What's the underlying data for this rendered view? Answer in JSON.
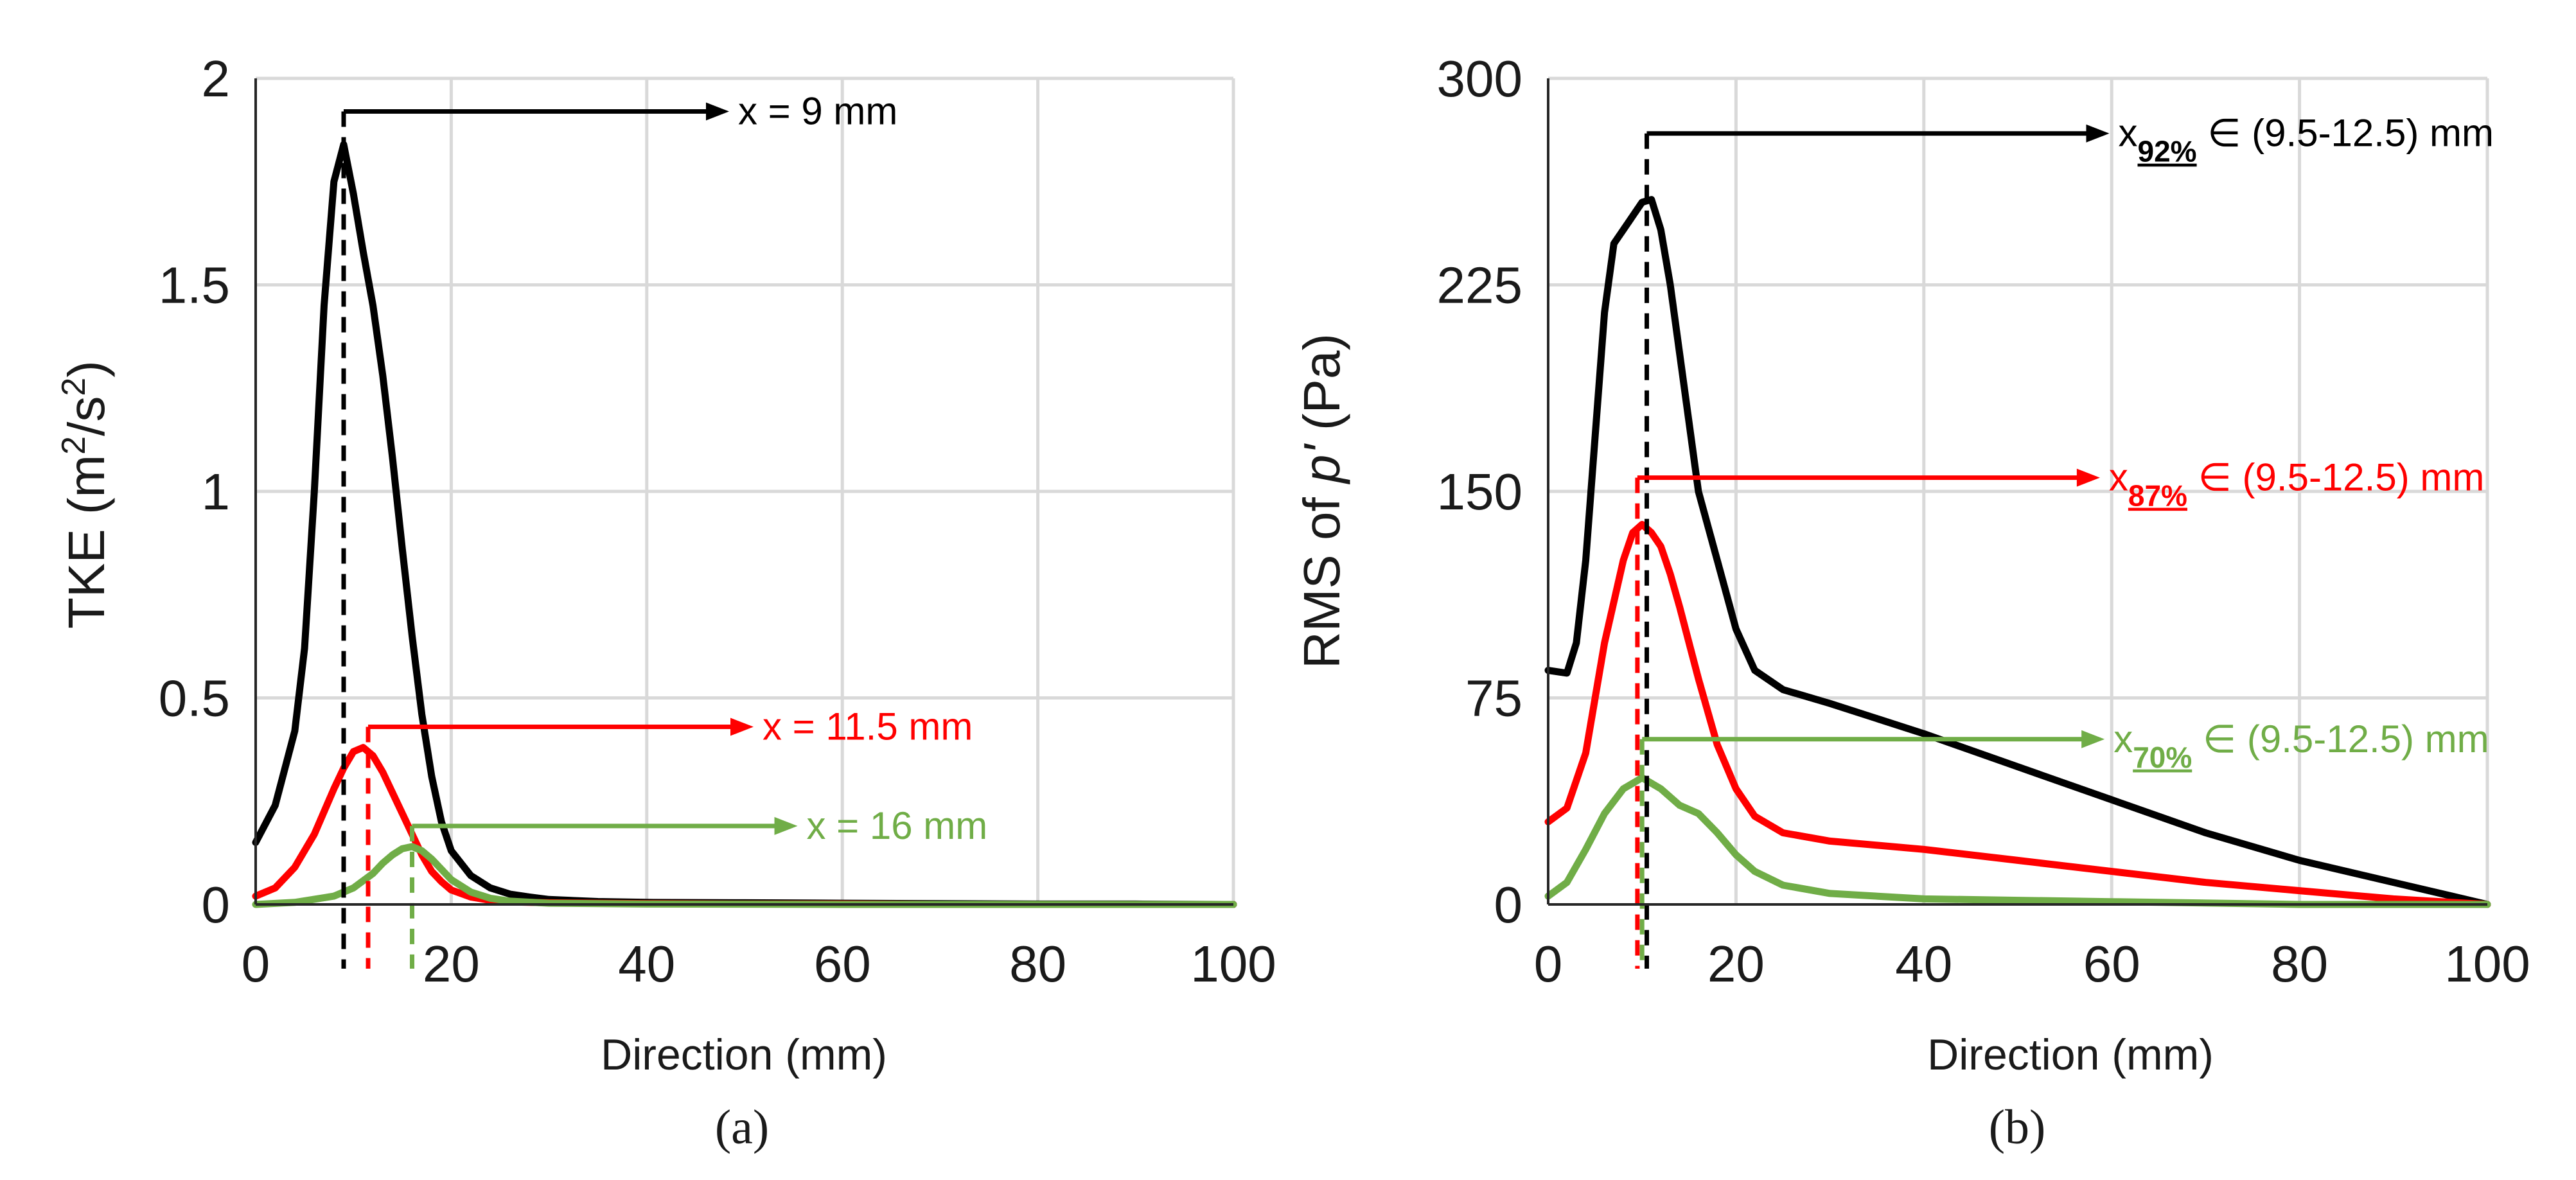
{
  "chart_data": [
    {
      "type": "line",
      "panel_label": "(a)",
      "xlabel": "Direction (mm)",
      "ylabel": "TKE (m²/s²)",
      "ylabel_parts": {
        "pre": "TKE (m",
        "sup1": "2",
        "mid": "/s",
        "sup2": "2",
        "post": ")"
      },
      "xlim": [
        0,
        100
      ],
      "ylim": [
        0,
        2
      ],
      "xticks": [
        "0",
        "20",
        "40",
        "60",
        "80",
        "100"
      ],
      "yticks": [
        "0",
        "0.5",
        "1",
        "1.5",
        "2"
      ],
      "grid": true,
      "series": [
        {
          "name": "black",
          "color": "#000000",
          "x": [
            0,
            2,
            4,
            5,
            6,
            7,
            8,
            9,
            10,
            11,
            12,
            13,
            14,
            15,
            16,
            17,
            18,
            19,
            20,
            22,
            24,
            26,
            28,
            30,
            35,
            40,
            50,
            60,
            70,
            80,
            90,
            100
          ],
          "y": [
            0.15,
            0.24,
            0.42,
            0.62,
            1.0,
            1.45,
            1.75,
            1.84,
            1.72,
            1.58,
            1.45,
            1.28,
            1.08,
            0.86,
            0.65,
            0.46,
            0.31,
            0.2,
            0.13,
            0.07,
            0.04,
            0.025,
            0.018,
            0.012,
            0.007,
            0.005,
            0.004,
            0.003,
            0.002,
            0.001,
            0.001,
            0
          ]
        },
        {
          "name": "red",
          "color": "#ff0000",
          "x": [
            0,
            2,
            4,
            6,
            8,
            9,
            10,
            11,
            12,
            13,
            14,
            15,
            16,
            17,
            18,
            19,
            20,
            22,
            24,
            26,
            30,
            35,
            40,
            50,
            60,
            70,
            80,
            90,
            100
          ],
          "y": [
            0.02,
            0.04,
            0.09,
            0.17,
            0.28,
            0.33,
            0.37,
            0.38,
            0.36,
            0.32,
            0.27,
            0.22,
            0.17,
            0.12,
            0.08,
            0.055,
            0.035,
            0.018,
            0.01,
            0.006,
            0.004,
            0.003,
            0.002,
            0.001,
            0.001,
            0,
            0,
            0,
            0
          ]
        },
        {
          "name": "green",
          "color": "#70ad47",
          "x": [
            0,
            4,
            8,
            10,
            12,
            13,
            14,
            15,
            16,
            17,
            18,
            19,
            20,
            22,
            24,
            26,
            30,
            40,
            60,
            100
          ],
          "y": [
            0,
            0.005,
            0.02,
            0.04,
            0.075,
            0.1,
            0.12,
            0.135,
            0.14,
            0.13,
            0.11,
            0.085,
            0.06,
            0.03,
            0.015,
            0.008,
            0.003,
            0.001,
            0,
            0
          ]
        }
      ],
      "markers": [
        {
          "x": 9,
          "y": 1.92,
          "label": "x = 9 mm",
          "color": "#000000"
        },
        {
          "x": 11.5,
          "y": 0.43,
          "label": "x = 11.5 mm",
          "color": "#ff0000"
        },
        {
          "x": 16,
          "y": 0.19,
          "label": "x = 16 mm",
          "color": "#70ad47"
        }
      ]
    },
    {
      "type": "line",
      "panel_label": "(b)",
      "xlabel": "Direction (mm)",
      "ylabel": "RMS of p' (Pa)",
      "ylabel_parts": {
        "pre": "RMS of ",
        "ital": "p'",
        "post": " (Pa)"
      },
      "xlim": [
        0,
        100
      ],
      "ylim": [
        0,
        300
      ],
      "xticks": [
        "0",
        "20",
        "40",
        "60",
        "80",
        "100"
      ],
      "yticks": [
        "0",
        "75",
        "150",
        "225",
        "300"
      ],
      "grid": true,
      "series": [
        {
          "name": "black",
          "color": "#000000",
          "x": [
            0,
            2,
            3,
            4,
            5,
            6,
            7,
            8,
            9,
            10,
            11,
            12,
            13,
            14,
            15,
            16,
            18,
            20,
            22,
            25,
            30,
            40,
            50,
            60,
            70,
            80,
            90,
            100
          ],
          "y": [
            85,
            84,
            95,
            125,
            170,
            215,
            240,
            245,
            250,
            255,
            256,
            245,
            225,
            200,
            175,
            150,
            125,
            100,
            85,
            78,
            73,
            62,
            50,
            38,
            26,
            16,
            8,
            0
          ]
        },
        {
          "name": "red",
          "color": "#ff0000",
          "x": [
            0,
            2,
            4,
            6,
            8,
            9,
            10,
            11,
            12,
            13,
            14,
            15,
            16,
            17,
            18,
            20,
            22,
            25,
            30,
            40,
            50,
            60,
            70,
            80,
            90,
            100
          ],
          "y": [
            30,
            35,
            55,
            95,
            125,
            135,
            138,
            135,
            130,
            120,
            108,
            95,
            82,
            70,
            58,
            42,
            32,
            26,
            23,
            20,
            16,
            12,
            8,
            5,
            2,
            0
          ]
        },
        {
          "name": "green",
          "color": "#70ad47",
          "x": [
            0,
            2,
            4,
            6,
            8,
            10,
            12,
            14,
            16,
            18,
            20,
            22,
            25,
            30,
            40,
            60,
            80,
            100
          ],
          "y": [
            3,
            8,
            20,
            33,
            42,
            46,
            42,
            36,
            33,
            26,
            18,
            12,
            7,
            4,
            2,
            1,
            0,
            0
          ]
        }
      ],
      "markers": [
        {
          "x": 10.5,
          "y": 280,
          "label_base": "x",
          "label_sub": "92%",
          "label_rest": " ∈ (9.5-12.5) mm",
          "color": "#000000"
        },
        {
          "x": 9.5,
          "y": 155,
          "label_base": "x",
          "label_sub": "87%",
          "label_rest": " ∈ (9.5-12.5) mm",
          "color": "#ff0000"
        },
        {
          "x": 10,
          "y": 60,
          "label_base": "x",
          "label_sub": "70%",
          "label_rest": " ∈ (9.5-12.5) mm",
          "color": "#70ad47"
        }
      ]
    }
  ]
}
